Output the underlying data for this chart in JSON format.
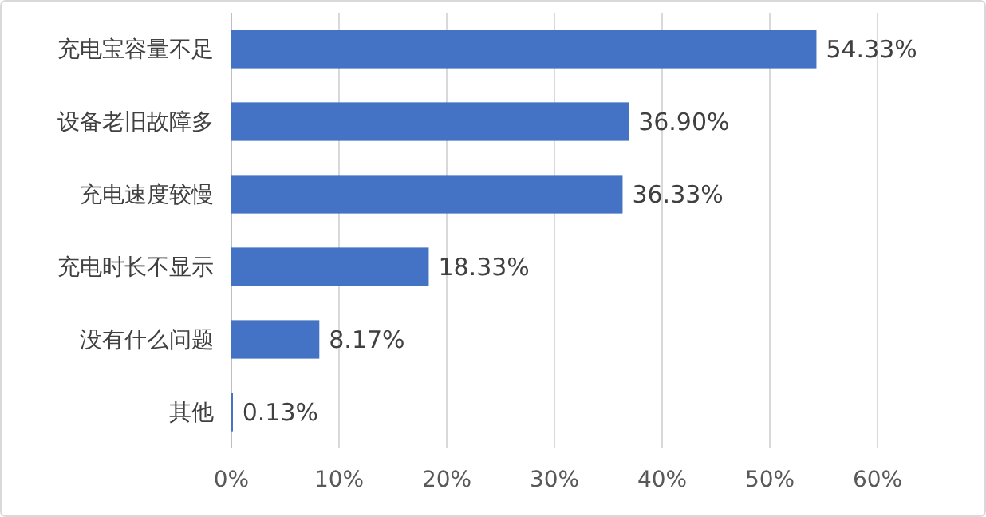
{
  "chart_data": {
    "type": "bar",
    "orientation": "horizontal",
    "categories": [
      "充电宝容量不足",
      "设备老旧故障多",
      "充电速度较慢",
      "充电时长不显示",
      "没有什么问题",
      "其他"
    ],
    "values": [
      54.33,
      36.9,
      36.33,
      18.33,
      8.17,
      0.13
    ],
    "value_labels": [
      "54.33%",
      "36.90%",
      "36.33%",
      "18.33%",
      "8.17%",
      "0.13%"
    ],
    "color": "#4472c4",
    "xlim": [
      0,
      60
    ],
    "xticks": [
      {
        "value": 0,
        "label": "0%"
      },
      {
        "value": 10,
        "label": "10%"
      },
      {
        "value": 20,
        "label": "20%"
      },
      {
        "value": 30,
        "label": "30%"
      },
      {
        "value": 40,
        "label": "40%"
      },
      {
        "value": 50,
        "label": "50%"
      },
      {
        "value": 60,
        "label": "60%"
      }
    ],
    "grid": "x"
  }
}
